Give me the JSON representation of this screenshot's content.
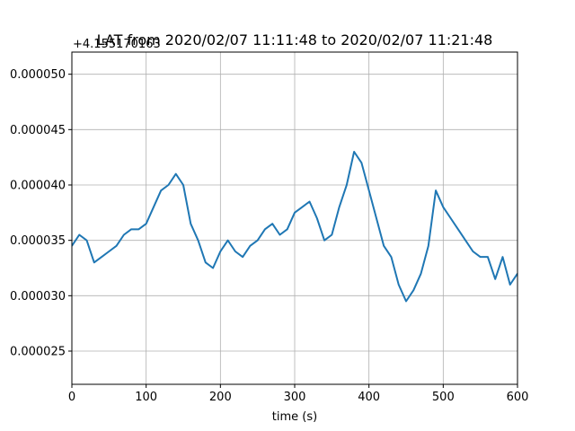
{
  "chart_data": {
    "type": "line",
    "title": "LAT from 2020/02/07 11:11:48 to 2020/02/07 11:21:48",
    "xlabel": "time (s)",
    "ylabel": "",
    "y_offset_text": "+4.155170163",
    "xlim": [
      0,
      600
    ],
    "ylim": [
      2.2e-05,
      5.2e-05
    ],
    "xticks": [
      "0",
      "100",
      "200",
      "300",
      "400",
      "500",
      "600"
    ],
    "yticks": [
      "0.000025",
      "0.000030",
      "0.000035",
      "0.000040",
      "0.000045",
      "0.000050"
    ],
    "grid": true,
    "series": [
      {
        "color": "#1f77b4",
        "x": [
          0,
          10,
          20,
          30,
          40,
          50,
          60,
          70,
          80,
          90,
          100,
          110,
          120,
          130,
          140,
          150,
          160,
          170,
          180,
          190,
          200,
          210,
          220,
          230,
          240,
          250,
          260,
          270,
          280,
          290,
          300,
          310,
          320,
          330,
          340,
          350,
          360,
          370,
          380,
          390,
          400,
          410,
          420,
          430,
          440,
          450,
          460,
          470,
          480,
          490,
          500,
          510,
          520,
          530,
          540,
          550,
          560,
          570,
          580,
          590,
          600
        ],
        "y": [
          3.45e-05,
          3.55e-05,
          3.5e-05,
          3.3e-05,
          3.35e-05,
          3.4e-05,
          3.45e-05,
          3.55e-05,
          3.6e-05,
          3.6e-05,
          3.65e-05,
          3.8e-05,
          3.95e-05,
          4e-05,
          4.1e-05,
          4e-05,
          3.65e-05,
          3.5e-05,
          3.3e-05,
          3.25e-05,
          3.4e-05,
          3.5e-05,
          3.4e-05,
          3.35e-05,
          3.45e-05,
          3.5e-05,
          3.6e-05,
          3.65e-05,
          3.55e-05,
          3.6e-05,
          3.75e-05,
          3.8e-05,
          3.85e-05,
          3.7e-05,
          3.5e-05,
          3.55e-05,
          3.8e-05,
          4e-05,
          4.3e-05,
          4.2e-05,
          3.95e-05,
          3.7e-05,
          3.45e-05,
          3.35e-05,
          3.1e-05,
          2.95e-05,
          3.05e-05,
          3.2e-05,
          3.45e-05,
          3.95e-05,
          3.8e-05,
          3.7e-05,
          3.6e-05,
          3.5e-05,
          3.4e-05,
          3.35e-05,
          3.35e-05,
          3.15e-05,
          3.35e-05,
          3.1e-05,
          3.2e-05
        ]
      }
    ]
  }
}
